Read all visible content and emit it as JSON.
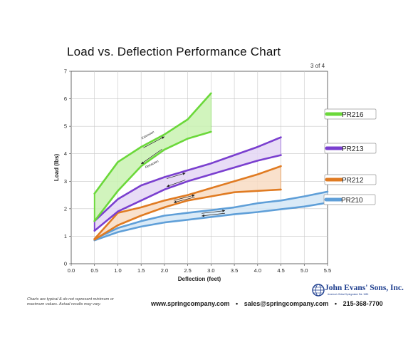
{
  "page": {
    "page_number": "3 of 4",
    "disclaimer": "Charts are typical & do not represent minimum or maximum values. Actual results may vary.",
    "contact": {
      "website": "www.springcompany.com",
      "email": "sales@springcompany.com",
      "phone": "215-368-7700",
      "separator": "•"
    },
    "logo": {
      "name": "John Evans' Sons, Inc.",
      "tagline": "America's Oldest Springmaker Est. 1850",
      "color": "#1f3f8f"
    }
  },
  "chart_data": {
    "type": "area",
    "title": "Load vs. Deflection Performance Chart",
    "xlabel": "Deflection (feet)",
    "ylabel": "Load (lbs)",
    "xlim": [
      0,
      5.5
    ],
    "ylim": [
      0,
      7
    ],
    "xticks": [
      "0.0",
      "0.5",
      "1.0",
      "1.5",
      "2.0",
      "2.5",
      "3.0",
      "3.5",
      "4.0",
      "4.5",
      "5.0",
      "5.5"
    ],
    "yticks": [
      "0",
      "1",
      "2",
      "3",
      "4",
      "5",
      "6",
      "7"
    ],
    "grid": true,
    "legend": "right",
    "annotations": [
      "Extension",
      "Retraction"
    ],
    "series": [
      {
        "name": "PR216",
        "color": "#6bd83a",
        "fill": "#c9f2b2",
        "upper": [
          [
            0.5,
            2.55
          ],
          [
            1.0,
            3.7
          ],
          [
            1.5,
            4.25
          ],
          [
            2.0,
            4.7
          ],
          [
            2.5,
            5.25
          ],
          [
            3.0,
            6.2
          ]
        ],
        "lower": [
          [
            0.5,
            1.55
          ],
          [
            1.0,
            2.65
          ],
          [
            1.5,
            3.55
          ],
          [
            2.0,
            4.15
          ],
          [
            2.5,
            4.55
          ],
          [
            3.0,
            4.8
          ]
        ]
      },
      {
        "name": "PR213",
        "color": "#7a3fcf",
        "fill": "#e4d6f4",
        "upper": [
          [
            0.5,
            1.55
          ],
          [
            1.0,
            2.35
          ],
          [
            1.5,
            2.85
          ],
          [
            2.0,
            3.15
          ],
          [
            2.5,
            3.4
          ],
          [
            3.0,
            3.65
          ],
          [
            3.5,
            3.95
          ],
          [
            4.0,
            4.25
          ],
          [
            4.5,
            4.6
          ]
        ],
        "lower": [
          [
            0.5,
            1.2
          ],
          [
            1.0,
            1.9
          ],
          [
            1.5,
            2.3
          ],
          [
            2.0,
            2.7
          ],
          [
            2.5,
            3.0
          ],
          [
            3.0,
            3.25
          ],
          [
            3.5,
            3.5
          ],
          [
            4.0,
            3.75
          ],
          [
            4.5,
            3.95
          ]
        ]
      },
      {
        "name": "PR212",
        "color": "#e07b22",
        "fill": "#f8dcc3",
        "upper": [
          [
            0.5,
            0.9
          ],
          [
            1.0,
            1.85
          ],
          [
            1.5,
            2.05
          ],
          [
            2.0,
            2.3
          ],
          [
            2.5,
            2.5
          ],
          [
            3.0,
            2.75
          ],
          [
            3.5,
            3.0
          ],
          [
            4.0,
            3.25
          ],
          [
            4.5,
            3.55
          ]
        ],
        "lower": [
          [
            0.5,
            0.88
          ],
          [
            1.0,
            1.4
          ],
          [
            1.5,
            1.75
          ],
          [
            2.0,
            2.05
          ],
          [
            2.5,
            2.3
          ],
          [
            3.0,
            2.45
          ],
          [
            3.5,
            2.6
          ],
          [
            4.0,
            2.65
          ],
          [
            4.5,
            2.7
          ]
        ]
      },
      {
        "name": "PR210",
        "color": "#5f9fd8",
        "fill": "#d3e6f6",
        "upper": [
          [
            0.5,
            0.9
          ],
          [
            1.0,
            1.3
          ],
          [
            1.5,
            1.55
          ],
          [
            2.0,
            1.75
          ],
          [
            2.5,
            1.85
          ],
          [
            3.0,
            1.95
          ],
          [
            3.5,
            2.05
          ],
          [
            4.0,
            2.2
          ],
          [
            4.5,
            2.3
          ],
          [
            5.0,
            2.45
          ],
          [
            5.5,
            2.62
          ]
        ],
        "lower": [
          [
            0.5,
            0.85
          ],
          [
            1.0,
            1.15
          ],
          [
            1.5,
            1.35
          ],
          [
            2.0,
            1.5
          ],
          [
            2.5,
            1.6
          ],
          [
            3.0,
            1.7
          ],
          [
            3.5,
            1.8
          ],
          [
            4.0,
            1.88
          ],
          [
            4.5,
            1.98
          ],
          [
            5.0,
            2.08
          ],
          [
            5.5,
            2.22
          ]
        ]
      }
    ]
  }
}
